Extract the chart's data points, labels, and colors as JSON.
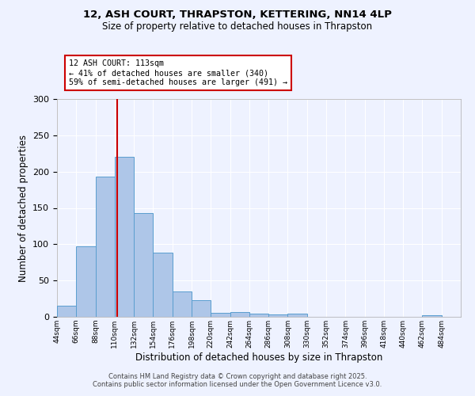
{
  "title_line1": "12, ASH COURT, THRAPSTON, KETTERING, NN14 4LP",
  "title_line2": "Size of property relative to detached houses in Thrapston",
  "xlabel": "Distribution of detached houses by size in Thrapston",
  "ylabel": "Number of detached properties",
  "bin_labels": [
    "44sqm",
    "66sqm",
    "88sqm",
    "110sqm",
    "132sqm",
    "154sqm",
    "176sqm",
    "198sqm",
    "220sqm",
    "242sqm",
    "264sqm",
    "286sqm",
    "308sqm",
    "330sqm",
    "352sqm",
    "374sqm",
    "396sqm",
    "418sqm",
    "440sqm",
    "462sqm",
    "484sqm"
  ],
  "bin_edges": [
    44,
    66,
    88,
    110,
    132,
    154,
    176,
    198,
    220,
    242,
    264,
    286,
    308,
    330,
    352,
    374,
    396,
    418,
    440,
    462,
    484,
    506
  ],
  "values": [
    15,
    97,
    193,
    220,
    143,
    88,
    35,
    23,
    5,
    7,
    4,
    3,
    4,
    0,
    0,
    0,
    0,
    0,
    0,
    2,
    0
  ],
  "bar_facecolor": "#aec6e8",
  "bar_edgecolor": "#5a9ecf",
  "property_size": 113,
  "vline_color": "#cc0000",
  "annotation_text": "12 ASH COURT: 113sqm\n← 41% of detached houses are smaller (340)\n59% of semi-detached houses are larger (491) →",
  "annotation_box_edgecolor": "#cc0000",
  "annotation_box_facecolor": "#ffffff",
  "ylim": [
    0,
    300
  ],
  "yticks": [
    0,
    50,
    100,
    150,
    200,
    250,
    300
  ],
  "background_color": "#eef2ff",
  "grid_color": "#ffffff",
  "footer_line1": "Contains HM Land Registry data © Crown copyright and database right 2025.",
  "footer_line2": "Contains public sector information licensed under the Open Government Licence v3.0."
}
